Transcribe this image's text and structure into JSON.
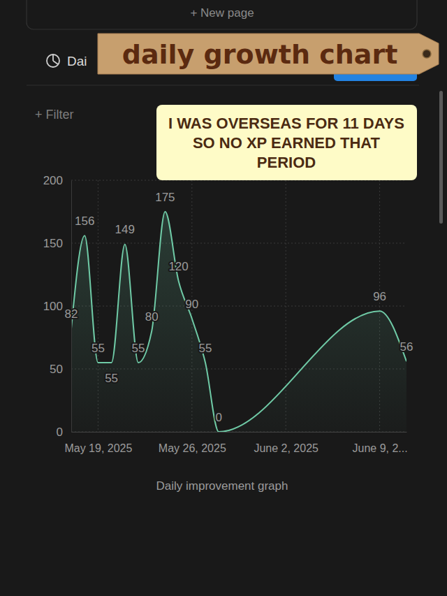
{
  "page": {
    "new_page": "+ New page",
    "view_tab": "Dai",
    "filter": "+ Filter",
    "sticker": "daily growth chart"
  },
  "chart_data": {
    "type": "line",
    "caption": "Daily improvement graph",
    "annotations": [
      "I WAS OVERSEAS FOR 11 DAYS SO NO XP EARNED THAT PERIOD"
    ],
    "x": [
      "2025-05-17",
      "2025-05-18",
      "2025-05-19",
      "2025-05-20",
      "2025-05-21",
      "2025-05-22",
      "2025-05-23",
      "2025-05-24",
      "2025-05-25",
      "2025-05-26",
      "2025-05-27",
      "2025-05-28",
      "2025-06-09",
      "2025-06-11"
    ],
    "values": [
      82,
      156,
      55,
      55,
      149,
      55,
      80,
      175,
      120,
      90,
      55,
      0,
      96,
      56
    ],
    "color": "#6fcaa6",
    "xlim": [
      "2025-05-17",
      "2025-06-11"
    ],
    "xticks": [
      {
        "value": "2025-05-19",
        "label": "May 19, 2025"
      },
      {
        "value": "2025-05-26",
        "label": "May 26, 2025"
      },
      {
        "value": "2025-06-02",
        "label": "June 2, 2025"
      },
      {
        "value": "2025-06-09",
        "label": "June 9, 2..."
      }
    ],
    "ylim": [
      0,
      200
    ],
    "yticks": [
      0,
      50,
      100,
      150,
      200
    ],
    "grid": true,
    "data_labels": true
  }
}
